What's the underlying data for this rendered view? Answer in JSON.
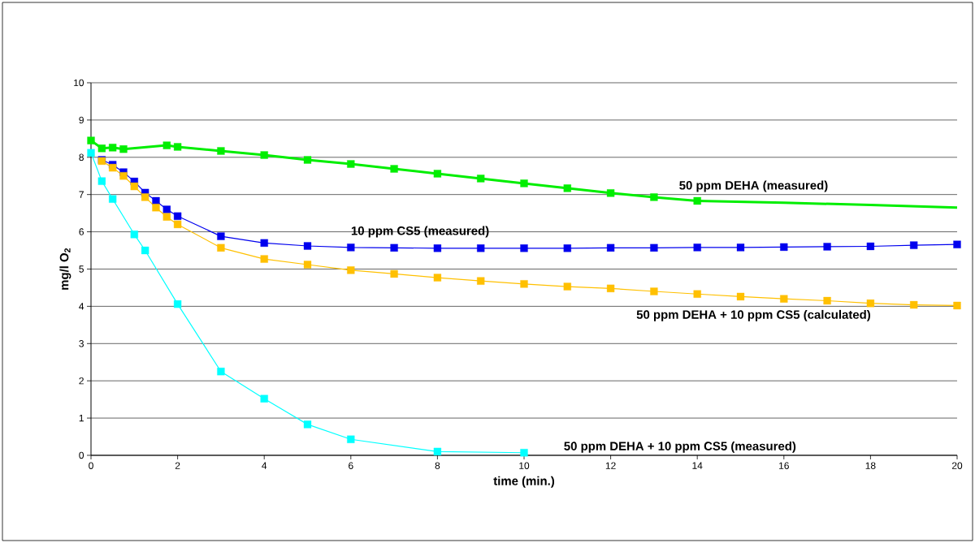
{
  "chart_data": {
    "type": "line",
    "xlabel": "time (min.)",
    "ylabel": "mg/l O$_{2}$",
    "xlim": [
      0,
      20
    ],
    "ylim": [
      0,
      10
    ],
    "xticks": [
      0,
      2,
      4,
      6,
      8,
      10,
      12,
      14,
      16,
      18,
      20
    ],
    "yticks": [
      0,
      1,
      2,
      3,
      4,
      5,
      6,
      7,
      8,
      9,
      10
    ],
    "grid": "y",
    "marker": "square",
    "line_style": "solid",
    "series": [
      {
        "name": "50 ppm DEHA (measured)",
        "color": "#00ee00",
        "x": [
          0,
          0.25,
          0.5,
          0.75,
          1.75,
          2,
          3,
          4,
          5,
          6,
          7,
          8,
          9,
          10,
          11,
          12,
          13,
          14
        ],
        "values": [
          8.45,
          8.24,
          8.26,
          8.22,
          8.32,
          8.28,
          8.17,
          8.06,
          7.93,
          7.82,
          7.69,
          7.56,
          7.43,
          7.3,
          7.17,
          7.04,
          6.93,
          6.83
        ]
      },
      {
        "type": "line",
        "marker": "none",
        "color": "#00ee00",
        "x": [
          14,
          16,
          18,
          20
        ],
        "values": [
          6.83,
          6.78,
          6.72,
          6.65
        ]
      },
      {
        "name": "10 ppm CS5 (measured)",
        "color": "#0000ee",
        "x": [
          0.25,
          0.5,
          0.75,
          1,
          1.25,
          1.5,
          1.75,
          2,
          3,
          4,
          5,
          6,
          7,
          8,
          9,
          10,
          11,
          12,
          13,
          14,
          15,
          16,
          17,
          18,
          19,
          20
        ],
        "values": [
          7.93,
          7.8,
          7.6,
          7.35,
          7.05,
          6.83,
          6.6,
          6.42,
          5.88,
          5.7,
          5.62,
          5.58,
          5.57,
          5.56,
          5.56,
          5.56,
          5.56,
          5.57,
          5.57,
          5.58,
          5.58,
          5.59,
          5.6,
          5.61,
          5.64,
          5.66
        ]
      },
      {
        "name": "50 ppm DEHA + 10 ppm CS5 (calculated)",
        "color": "#ffc000",
        "x": [
          0.25,
          0.5,
          0.75,
          1,
          1.25,
          1.5,
          1.75,
          2,
          3,
          4,
          5,
          6,
          7,
          8,
          9,
          10,
          11,
          12,
          13,
          14,
          15,
          16,
          17,
          18,
          19,
          20
        ],
        "values": [
          7.9,
          7.72,
          7.5,
          7.22,
          6.93,
          6.65,
          6.4,
          6.2,
          5.57,
          5.27,
          5.12,
          4.97,
          4.87,
          4.77,
          4.68,
          4.6,
          4.53,
          4.48,
          4.4,
          4.33,
          4.26,
          4.2,
          4.15,
          4.08,
          4.04,
          4.02
        ]
      },
      {
        "name": "50 ppm DEHA + 10 ppm CS5 (measured)",
        "color": "#00ffff",
        "x": [
          0,
          0.25,
          0.5,
          1,
          1.25,
          2,
          3,
          4,
          5,
          6,
          8,
          10
        ],
        "values": [
          8.12,
          7.36,
          6.88,
          5.93,
          5.5,
          4.06,
          2.25,
          1.52,
          0.83,
          0.43,
          0.1,
          0.07
        ]
      }
    ]
  }
}
